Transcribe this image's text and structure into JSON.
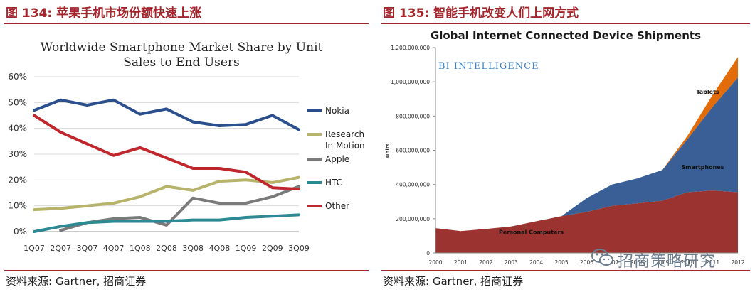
{
  "left_panel": {
    "title": "图 134: 苹果手机市场份额快速上涨",
    "source": "资料来源: Gartner, 招商证券"
  },
  "right_panel": {
    "title": "图 135: 智能手机改变人们上网方式",
    "source": "资料来源: Gartner, 招商证券",
    "watermark": "招商策略研究"
  },
  "chart_data": [
    {
      "type": "line",
      "title": "Worldwide Smartphone Market Share by Unit Sales to End Users",
      "title_lines": [
        "Worldwide Smartphone Market Share by Unit",
        "Sales to End Users"
      ],
      "categories": [
        "1Q07",
        "2Q07",
        "3Q07",
        "4Q07",
        "1Q08",
        "2Q08",
        "3Q08",
        "4Q08",
        "1Q09",
        "2Q09",
        "3Q09"
      ],
      "yticks": [
        "0%",
        "10%",
        "20%",
        "30%",
        "40%",
        "50%",
        "60%"
      ],
      "ylim": [
        0,
        60
      ],
      "series": [
        {
          "name": "Nokia",
          "color": "#2b4f8c",
          "values": [
            47,
            51,
            49,
            51,
            45.5,
            47.5,
            42.5,
            41,
            41.5,
            45,
            39.5
          ]
        },
        {
          "name": "Research In Motion",
          "label_lines": [
            "Research",
            "In Motion"
          ],
          "color": "#b7b36b",
          "values": [
            8.5,
            9,
            10,
            11,
            13.5,
            17.5,
            16,
            19.5,
            20,
            19,
            21
          ]
        },
        {
          "name": "Apple",
          "color": "#7a7a7a",
          "values": [
            null,
            0.5,
            3.5,
            5,
            5.5,
            2.5,
            13,
            11,
            11,
            13.5,
            17.5
          ]
        },
        {
          "name": "HTC",
          "color": "#2d8a94",
          "values": [
            0,
            2,
            3.5,
            4,
            4,
            4,
            4.5,
            4.5,
            5.5,
            6,
            6.5
          ]
        },
        {
          "name": "Other",
          "color": "#c0272d",
          "values": [
            45,
            38.5,
            34,
            29.5,
            32.5,
            28.5,
            24.5,
            24.5,
            23,
            17,
            16.5
          ]
        }
      ]
    },
    {
      "type": "area",
      "stacked": true,
      "title": "Global Internet Connected Device Shipments",
      "brand": "BI INTELLIGENCE",
      "ylabel": "Units",
      "x": [
        2000,
        2001,
        2002,
        2003,
        2004,
        2005,
        2006,
        2007,
        2008,
        2009,
        2010,
        2011,
        2012
      ],
      "xticks": [
        "2000",
        "2001",
        "2002",
        "2003",
        "2004",
        "2005",
        "2006",
        "2007",
        "2008",
        "2009",
        "2010",
        "2011",
        "2012"
      ],
      "yticks": [
        "0",
        "200,000,000",
        "400,000,000",
        "600,000,000",
        "800,000,000",
        "1,000,000,000",
        "1,200,000,000"
      ],
      "ylim": [
        0,
        1200000000
      ],
      "series": [
        {
          "name": "Personal Computers",
          "color": "#9b3431",
          "values": [
            145000000,
            128000000,
            140000000,
            155000000,
            185000000,
            215000000,
            240000000,
            275000000,
            290000000,
            305000000,
            355000000,
            365000000,
            355000000
          ]
        },
        {
          "name": "Smartphones",
          "color": "#3a5f96",
          "values": [
            0,
            0,
            0,
            0,
            0,
            0,
            80000000,
            125000000,
            145000000,
            180000000,
            310000000,
            490000000,
            670000000
          ]
        },
        {
          "name": "Tablets",
          "color": "#e36c0a",
          "values": [
            0,
            0,
            0,
            0,
            0,
            0,
            0,
            0,
            0,
            0,
            20000000,
            70000000,
            120000000
          ]
        }
      ]
    }
  ]
}
